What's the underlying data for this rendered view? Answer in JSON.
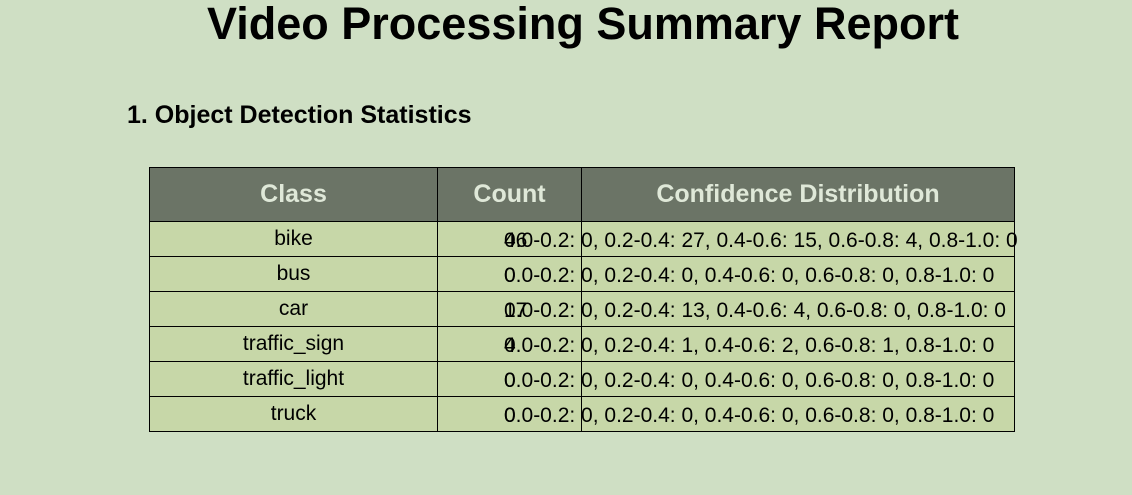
{
  "report": {
    "title": "Video Processing Summary Report",
    "section_heading": "1. Object Detection Statistics"
  },
  "table": {
    "headers": [
      "Class",
      "Count",
      "Confidence Distribution"
    ],
    "rows": [
      {
        "class": "bike",
        "count": "46",
        "confidence": "0.0-0.2: 0, 0.2-0.4: 27, 0.4-0.6: 15, 0.6-0.8: 4, 0.8-1.0: 0"
      },
      {
        "class": "bus",
        "count": "0",
        "confidence": "0.0-0.2: 0, 0.2-0.4: 0, 0.4-0.6: 0, 0.6-0.8: 0, 0.8-1.0: 0"
      },
      {
        "class": "car",
        "count": "17",
        "confidence": "0.0-0.2: 0, 0.2-0.4: 13, 0.4-0.6: 4, 0.6-0.8: 0, 0.8-1.0: 0"
      },
      {
        "class": "traffic_sign",
        "count": "4",
        "confidence": "0.0-0.2: 0, 0.2-0.4: 1, 0.4-0.6: 2, 0.6-0.8: 1, 0.8-1.0: 0"
      },
      {
        "class": "traffic_light",
        "count": "0",
        "confidence": "0.0-0.2: 0, 0.2-0.4: 0, 0.4-0.6: 0, 0.6-0.8: 0, 0.8-1.0: 0"
      },
      {
        "class": "truck",
        "count": "0",
        "confidence": "0.0-0.2: 0, 0.2-0.4: 0, 0.4-0.6: 0, 0.6-0.8: 0, 0.8-1.0: 0"
      }
    ]
  },
  "colors": {
    "page_background": "#cfdfc4",
    "header_background": "#6b7466",
    "header_text": "#dfe8d8",
    "row_background": "#c7d7a8"
  }
}
